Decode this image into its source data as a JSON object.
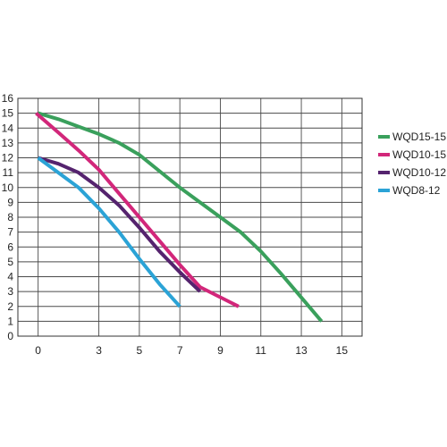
{
  "chart_data": {
    "type": "line",
    "title": "",
    "xlabel": "",
    "ylabel": "",
    "xlim": [
      -1,
      16
    ],
    "ylim": [
      0,
      16
    ],
    "x_ticks": [
      0,
      3,
      5,
      7,
      9,
      11,
      13,
      15
    ],
    "y_ticks": [
      0,
      1,
      2,
      3,
      4,
      5,
      6,
      7,
      8,
      9,
      10,
      11,
      12,
      13,
      14,
      15,
      16
    ],
    "grid": true,
    "legend_position": "right",
    "series": [
      {
        "name": "WQD15-15",
        "color": "#3aa05c",
        "points": [
          [
            0,
            15
          ],
          [
            1,
            14.6
          ],
          [
            2,
            14.1
          ],
          [
            3,
            13.6
          ],
          [
            4,
            13.0
          ],
          [
            5,
            12.2
          ],
          [
            6,
            11.1
          ],
          [
            7,
            10.0
          ],
          [
            8,
            9.0
          ],
          [
            9,
            8.0
          ],
          [
            10,
            7.0
          ],
          [
            11,
            5.7
          ],
          [
            12,
            4.2
          ],
          [
            13,
            2.6
          ],
          [
            14,
            1.0
          ]
        ]
      },
      {
        "name": "WQD10-15",
        "color": "#d2277a",
        "points": [
          [
            -0.1,
            15
          ],
          [
            1,
            13.7
          ],
          [
            2,
            12.5
          ],
          [
            3,
            11.2
          ],
          [
            4,
            9.6
          ],
          [
            5,
            8.0
          ],
          [
            6,
            6.4
          ],
          [
            7,
            4.8
          ],
          [
            8,
            3.3
          ],
          [
            9.9,
            2.0
          ]
        ]
      },
      {
        "name": "WQD10-12",
        "color": "#55236e",
        "points": [
          [
            0,
            12
          ],
          [
            1,
            11.6
          ],
          [
            2,
            11.0
          ],
          [
            3,
            10.0
          ],
          [
            4,
            8.8
          ],
          [
            5,
            7.3
          ],
          [
            6,
            5.7
          ],
          [
            7,
            4.3
          ],
          [
            8,
            3.0
          ]
        ]
      },
      {
        "name": "WQD8-12",
        "color": "#2ba3d6",
        "points": [
          [
            0,
            12
          ],
          [
            1,
            11.0
          ],
          [
            2,
            10.0
          ],
          [
            3,
            8.6
          ],
          [
            4,
            7.0
          ],
          [
            5,
            5.2
          ],
          [
            6,
            3.5
          ],
          [
            7,
            2.0
          ]
        ]
      }
    ]
  }
}
